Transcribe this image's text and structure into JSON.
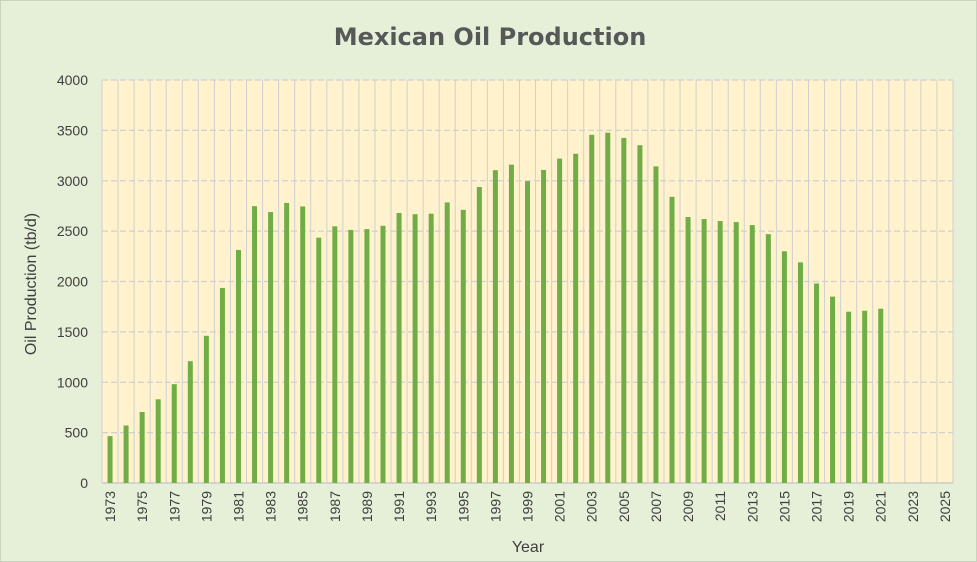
{
  "chart_data": {
    "type": "bar",
    "title": "Mexican Oil Production",
    "xlabel": "Year",
    "ylabel": "Oil Production (tb/d)",
    "ylim": [
      0,
      4000
    ],
    "yticks": [
      0,
      500,
      1000,
      1500,
      2000,
      2500,
      3000,
      3500,
      4000
    ],
    "xlim": [
      1973,
      2025
    ],
    "xtick_labels": [
      "1973",
      "1975",
      "1977",
      "1979",
      "1981",
      "1983",
      "1985",
      "1987",
      "1989",
      "1991",
      "1993",
      "1995",
      "1997",
      "1999",
      "2001",
      "2003",
      "2005",
      "2007",
      "2009",
      "2011",
      "2013",
      "2015",
      "2017",
      "2019",
      "2021",
      "2023",
      "2025"
    ],
    "grid": true,
    "legend": "none",
    "colors": {
      "bar": "#70ad47",
      "plot_bg": "#fff2cc",
      "chart_bg": "#e6efd7",
      "grid": "#d0d0d0"
    },
    "categories": [
      1973,
      1974,
      1975,
      1976,
      1977,
      1978,
      1979,
      1980,
      1981,
      1982,
      1983,
      1984,
      1985,
      1986,
      1987,
      1988,
      1989,
      1990,
      1991,
      1992,
      1993,
      1994,
      1995,
      1996,
      1997,
      1998,
      1999,
      2000,
      2001,
      2002,
      2003,
      2004,
      2005,
      2006,
      2007,
      2008,
      2009,
      2010,
      2011,
      2012,
      2013,
      2014,
      2015,
      2016,
      2017,
      2018,
      2019,
      2020,
      2021
    ],
    "values": [
      465,
      571,
      705,
      831,
      981,
      1209,
      1461,
      1936,
      2313,
      2748,
      2689,
      2780,
      2745,
      2435,
      2548,
      2512,
      2520,
      2553,
      2680,
      2668,
      2673,
      2785,
      2711,
      2938,
      3105,
      3160,
      2996,
      3107,
      3220,
      3268,
      3456,
      3477,
      3425,
      3353,
      3143,
      2840,
      2640,
      2620,
      2600,
      2590,
      2560,
      2470,
      2300,
      2190,
      1980,
      1850,
      1700,
      1710,
      1730
    ]
  }
}
